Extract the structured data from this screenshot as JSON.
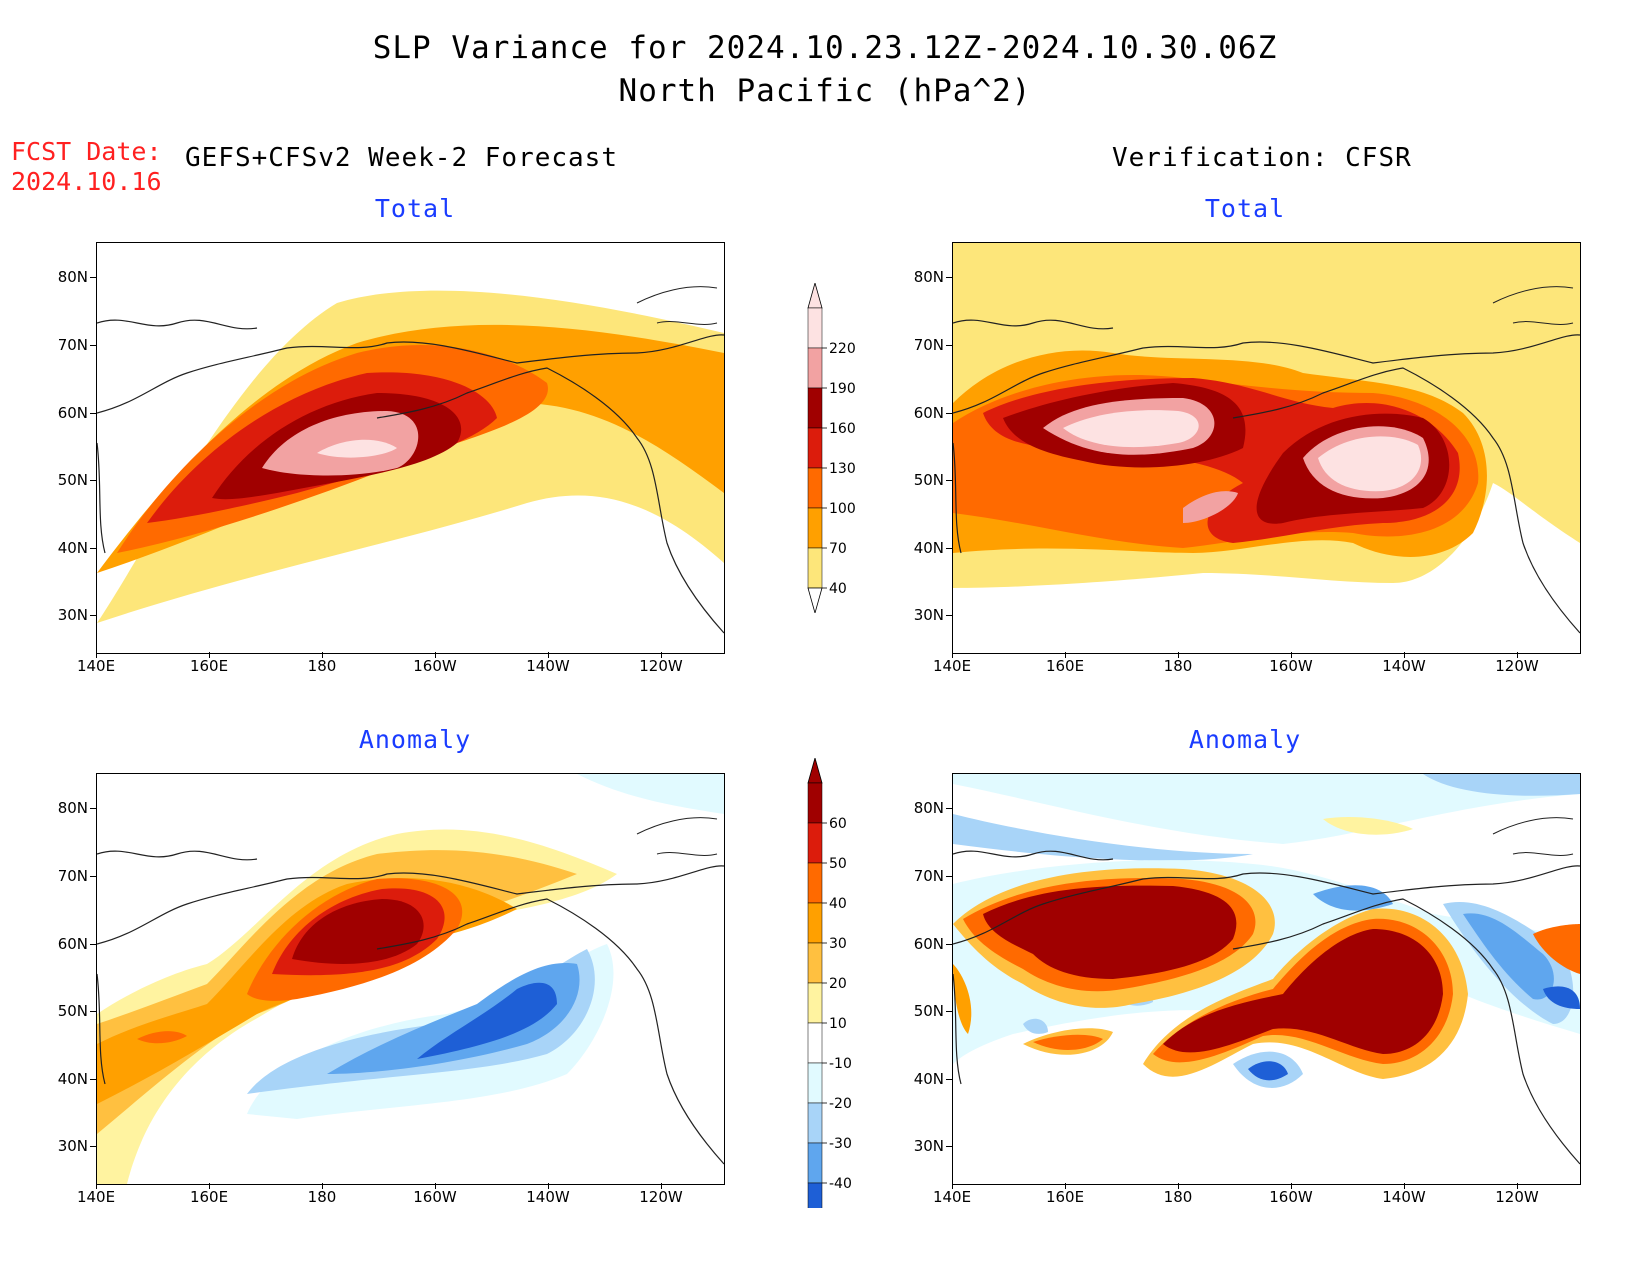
{
  "title": {
    "line1": "SLP Variance for 2024.10.23.12Z-2024.10.30.06Z",
    "line2": "North Pacific (hPa^2)"
  },
  "fcst": {
    "line1": "FCST Date:",
    "line2": "2024.10.16"
  },
  "headers": {
    "left": "GEFS+CFSv2 Week-2 Forecast",
    "right": "Verification: CFSR"
  },
  "panel_titles": {
    "total": "Total",
    "anomaly": "Anomaly"
  },
  "axes": {
    "lat_labels": [
      "80N",
      "70N",
      "60N",
      "50N",
      "40N",
      "30N"
    ],
    "lon_labels": [
      "140E",
      "160E",
      "180",
      "160W",
      "140W",
      "120W"
    ]
  },
  "colorbar_total": {
    "labels": [
      "220",
      "190",
      "160",
      "130",
      "100",
      "70",
      "40"
    ],
    "colors": [
      "#fde2e2",
      "#f2a2a2",
      "#a00000",
      "#dc1c0c",
      "#ff6a00",
      "#ffa000",
      "#fde67a"
    ]
  },
  "colorbar_anomaly": {
    "labels": [
      "60",
      "50",
      "40",
      "30",
      "20",
      "10",
      "-10",
      "-20",
      "-30",
      "-40"
    ],
    "colors": [
      "#a00000",
      "#dc1c0c",
      "#ff6a00",
      "#ffa000",
      "#ffc040",
      "#fff3a0",
      "#ffffff",
      "#e1faff",
      "#a8d4f8",
      "#5fa6ee",
      "#1e5fd6"
    ]
  },
  "chart_data": [
    {
      "type": "heatmap",
      "title": "Total",
      "source": "GEFS+CFSv2 Week-2 Forecast",
      "xlim": [
        "140E",
        "110W"
      ],
      "ylim": [
        "25N",
        "85N"
      ],
      "units": "hPa^2",
      "max_center": "55N 175E",
      "max_value_range": "190-220+"
    },
    {
      "type": "heatmap",
      "title": "Total",
      "source": "Verification: CFSR",
      "xlim": [
        "140E",
        "110W"
      ],
      "ylim": [
        "25N",
        "85N"
      ],
      "units": "hPa^2",
      "max_centers": [
        "58N 175E",
        "53N 145W"
      ],
      "max_value_range": "220+"
    },
    {
      "type": "heatmap",
      "title": "Anomaly",
      "source": "GEFS+CFSv2 Week-2 Forecast",
      "xlim": [
        "140E",
        "110W"
      ],
      "ylim": [
        "25N",
        "85N"
      ],
      "units": "hPa^2",
      "positive_center": "58N 178E",
      "negative_center": "45N 150W"
    },
    {
      "type": "heatmap",
      "title": "Anomaly",
      "source": "Verification: CFSR",
      "xlim": [
        "140E",
        "110W"
      ],
      "ylim": [
        "25N",
        "85N"
      ],
      "units": "hPa^2",
      "positive_centers": [
        "57N 175E",
        "50N 145W",
        "40N 178W"
      ],
      "negative_centers": [
        "60N 158W",
        "50N 125W",
        "37N 163W"
      ]
    }
  ]
}
